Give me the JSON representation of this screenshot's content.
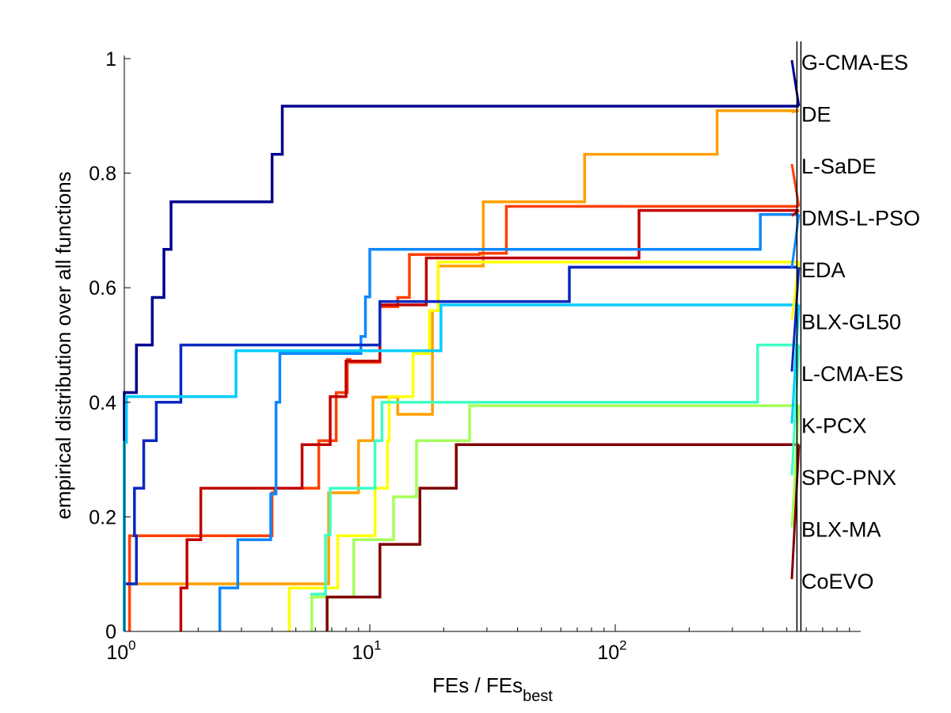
{
  "chart_data": {
    "type": "line",
    "x_scale": "log",
    "xlim": [
      1,
      1000
    ],
    "ylim": [
      0,
      1
    ],
    "grid": false,
    "legend_placement": "right, connected to curve ends",
    "xlabel": "FEs / FEs",
    "xlabel_sub": "best",
    "ylabel": "empirical distribution over all functions",
    "x_ticks": [
      {
        "value": 1,
        "base": "10",
        "exp": "0"
      },
      {
        "value": 10,
        "base": "10",
        "exp": "1"
      },
      {
        "value": 100,
        "base": "10",
        "exp": "2"
      }
    ],
    "y_ticks": [
      {
        "value": 0,
        "label": "0"
      },
      {
        "value": 0.2,
        "label": "0.2"
      },
      {
        "value": 0.4,
        "label": "0.4"
      },
      {
        "value": 0.6,
        "label": "0.6"
      },
      {
        "value": 0.8,
        "label": "0.8"
      },
      {
        "value": 1,
        "label": "1"
      }
    ],
    "vertical_marker_x": 560,
    "series": [
      {
        "name": "G-CMA-ES",
        "color": "#00008f",
        "end": 0.917,
        "steps": [
          [
            1,
            0.417
          ],
          [
            1.12,
            0.5
          ],
          [
            1.3,
            0.583
          ],
          [
            1.45,
            0.667
          ],
          [
            1.55,
            0.75
          ],
          [
            4.0,
            0.833
          ],
          [
            4.4,
            0.917
          ]
        ]
      },
      {
        "name": "DE",
        "color": "#ff9f00",
        "end": 0.909,
        "steps": [
          [
            1,
            0.083
          ],
          [
            6.8,
            0.242
          ],
          [
            9.0,
            0.333
          ],
          [
            10.3,
            0.409
          ],
          [
            13.0,
            0.379
          ],
          [
            18.0,
            0.56
          ],
          [
            19.0,
            0.638
          ],
          [
            29.0,
            0.75
          ],
          [
            75,
            0.833
          ],
          [
            260,
            0.909
          ]
        ]
      },
      {
        "name": "L-SaDE",
        "color": "#ff4000",
        "end": 0.742,
        "steps": [
          [
            1.05,
            0.167
          ],
          [
            4.0,
            0.242
          ],
          [
            4.1,
            0.25
          ],
          [
            6.2,
            0.333
          ],
          [
            7.3,
            0.417
          ],
          [
            8.1,
            0.475
          ],
          [
            8.3,
            0.47
          ],
          [
            11.0,
            0.567
          ],
          [
            13.0,
            0.583
          ],
          [
            14.5,
            0.658
          ],
          [
            28.0,
            0.66
          ],
          [
            36.0,
            0.742
          ]
        ]
      },
      {
        "name": "DMS-L-PSO",
        "color": "#c00000",
        "end": 0.735,
        "steps": [
          [
            1.7,
            0.076
          ],
          [
            1.8,
            0.16
          ],
          [
            2.05,
            0.25
          ],
          [
            5.0,
            0.25
          ],
          [
            5.3,
            0.326
          ],
          [
            6.9,
            0.41
          ],
          [
            8.0,
            0.472
          ],
          [
            11.0,
            0.57
          ],
          [
            17.0,
            0.652
          ],
          [
            125,
            0.735
          ]
        ]
      },
      {
        "name": "EDA",
        "color": "#0f88ff",
        "end": 0.728,
        "steps": [
          [
            2.45,
            0.076
          ],
          [
            2.9,
            0.16
          ],
          [
            3.95,
            0.24
          ],
          [
            4.15,
            0.4
          ],
          [
            4.3,
            0.485
          ],
          [
            9.2,
            0.515
          ],
          [
            9.6,
            0.584
          ],
          [
            10.0,
            0.667
          ],
          [
            390,
            0.728
          ]
        ]
      },
      {
        "name": "BLX-GL50",
        "color": "#ffff00",
        "end": 0.645,
        "steps": [
          [
            4.7,
            0.076
          ],
          [
            7.4,
            0.167
          ],
          [
            10.5,
            0.25
          ],
          [
            11.8,
            0.333
          ],
          [
            12.0,
            0.41
          ],
          [
            15.0,
            0.485
          ],
          [
            17.5,
            0.56
          ],
          [
            19.0,
            0.645
          ]
        ]
      },
      {
        "name": "L-CMA-ES",
        "color": "#0a28bf",
        "end": 0.636,
        "steps": [
          [
            1.0,
            0.083
          ],
          [
            1.12,
            0.167
          ],
          [
            1.1,
            0.25
          ],
          [
            1.2,
            0.333
          ],
          [
            1.35,
            0.4
          ],
          [
            1.7,
            0.5
          ],
          [
            11.0,
            0.576
          ],
          [
            65,
            0.636
          ]
        ]
      },
      {
        "name": "K-PCX",
        "color": "#00ccff",
        "end": 0.57,
        "steps": [
          [
            1.0,
            0.33
          ],
          [
            1.02,
            0.41
          ],
          [
            2.85,
            0.49
          ],
          [
            19.5,
            0.57
          ]
        ]
      },
      {
        "name": "SPC-PNX",
        "color": "#3dffc4",
        "end": 0.5,
        "steps": [
          [
            5.8,
            0.065
          ],
          [
            6.6,
            0.168
          ],
          [
            6.9,
            0.25
          ],
          [
            10.5,
            0.333
          ],
          [
            11.2,
            0.4
          ],
          [
            380,
            0.5
          ]
        ]
      },
      {
        "name": "BLX-MA",
        "color": "#a6ff5a",
        "end": 0.394,
        "steps": [
          [
            5.8,
            0.06
          ],
          [
            8.6,
            0.16
          ],
          [
            12.5,
            0.235
          ],
          [
            15.5,
            0.333
          ],
          [
            25.5,
            0.394
          ]
        ]
      },
      {
        "name": "CoEVO",
        "color": "#800000",
        "end": 0.326,
        "steps": [
          [
            6.7,
            0.06
          ],
          [
            11.0,
            0.152
          ],
          [
            16.0,
            0.25
          ],
          [
            22.5,
            0.326
          ]
        ]
      }
    ]
  }
}
